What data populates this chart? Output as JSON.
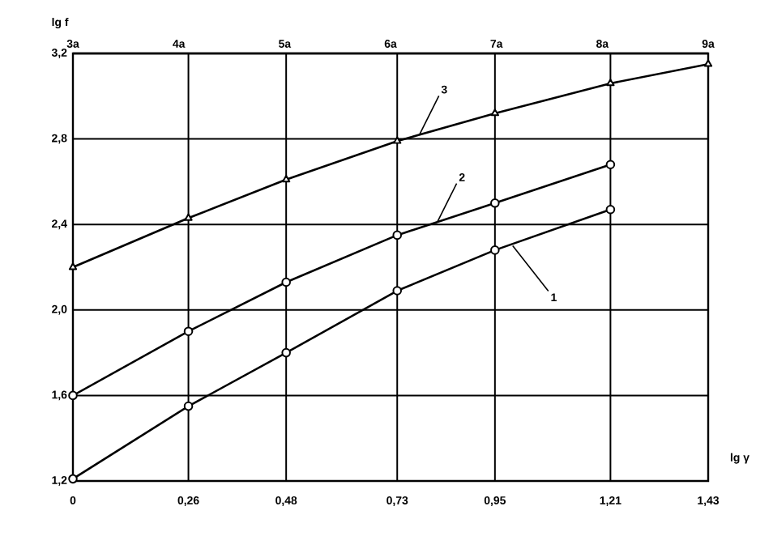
{
  "chart_data": {
    "type": "line",
    "xlabel": "lg γ",
    "ylabel": "lg f",
    "xlim": [
      0,
      1.43
    ],
    "ylim": [
      1.2,
      3.2
    ],
    "xticks": [
      0,
      {
        "value": 0.26,
        "label": "0,26"
      },
      {
        "value": 0.48,
        "label": "0,48"
      },
      {
        "value": 0.73,
        "label": "0,73"
      },
      {
        "value": 0.95,
        "label": "0,95"
      },
      {
        "value": 1.21,
        "label": "1,21"
      },
      {
        "value": 1.43,
        "label": "1,43"
      }
    ],
    "yticks": [
      {
        "value": 1.2,
        "label": "1,2"
      },
      {
        "value": 1.6,
        "label": "1,6"
      },
      {
        "value": 2.0,
        "label": "2,0"
      },
      {
        "value": 2.4,
        "label": "2,4"
      },
      {
        "value": 2.8,
        "label": "2,8"
      },
      {
        "value": 3.2,
        "label": "3,2"
      }
    ],
    "x2lim": [
      3,
      9
    ],
    "x2ticks": [
      {
        "value": 3,
        "label": "3a"
      },
      {
        "value": 4,
        "label": "4a"
      },
      {
        "value": 5,
        "label": "5a"
      },
      {
        "value": 6,
        "label": "6a"
      },
      {
        "value": 7,
        "label": "7a"
      },
      {
        "value": 8,
        "label": "8a"
      },
      {
        "value": 9,
        "label": "9a"
      }
    ],
    "grid": true,
    "line_style": "solid",
    "series": [
      {
        "color": "#000000",
        "marker": "circle",
        "x": [
          0,
          0.26,
          0.48,
          0.73,
          0.95,
          1.21
        ],
        "values": [
          1.21,
          1.55,
          1.8,
          2.09,
          2.28,
          2.47
        ]
      },
      {
        "color": "#000000",
        "marker": "circle",
        "x": [
          0,
          0.26,
          0.48,
          0.73,
          0.95,
          1.21
        ],
        "values": [
          1.6,
          1.9,
          2.13,
          2.35,
          2.5,
          2.68
        ]
      },
      {
        "color": "#000000",
        "marker": "triangle",
        "x": [
          0,
          0.26,
          0.48,
          0.73,
          0.95,
          1.21,
          1.43
        ],
        "values": [
          2.2,
          2.43,
          2.61,
          2.79,
          2.92,
          3.06,
          3.15
        ]
      }
    ],
    "annotations": [
      {
        "text": "1",
        "x": 0.99,
        "y": 2.3
      },
      {
        "text": "2",
        "x": 0.82,
        "y": 2.41
      },
      {
        "text": "3",
        "x": 0.78,
        "y": 2.82
      }
    ]
  }
}
